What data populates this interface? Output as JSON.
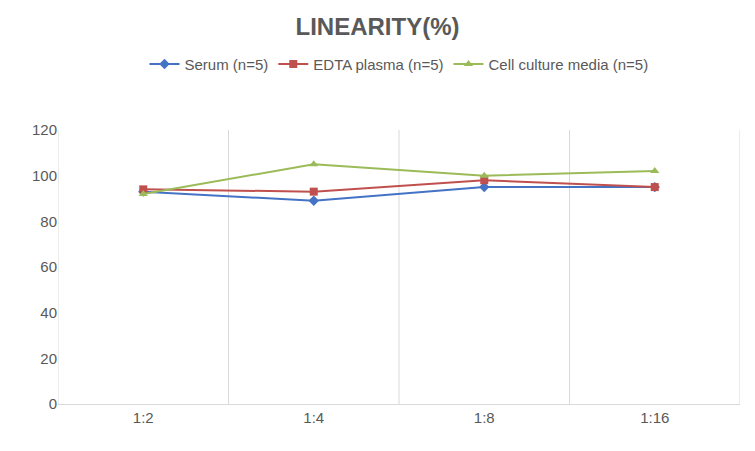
{
  "chart_data": {
    "type": "line",
    "title": "LINEARITY(%)",
    "categories": [
      "1:2",
      "1:4",
      "1:8",
      "1:16"
    ],
    "series": [
      {
        "name": "Serum (n=5)",
        "color": "#4472c4",
        "marker": "diamond",
        "values": [
          93,
          89,
          95,
          95
        ]
      },
      {
        "name": "EDTA plasma (n=5)",
        "color": "#c0504d",
        "marker": "square",
        "values": [
          94,
          93,
          98,
          95
        ]
      },
      {
        "name": "Cell culture media (n=5)",
        "color": "#9bbb59",
        "marker": "triangle-up",
        "values": [
          92,
          105,
          100,
          102
        ]
      }
    ],
    "ylim": [
      0,
      120
    ],
    "yticks": [
      0,
      20,
      40,
      60,
      80,
      100,
      120
    ],
    "grid": true,
    "legend": "top"
  }
}
